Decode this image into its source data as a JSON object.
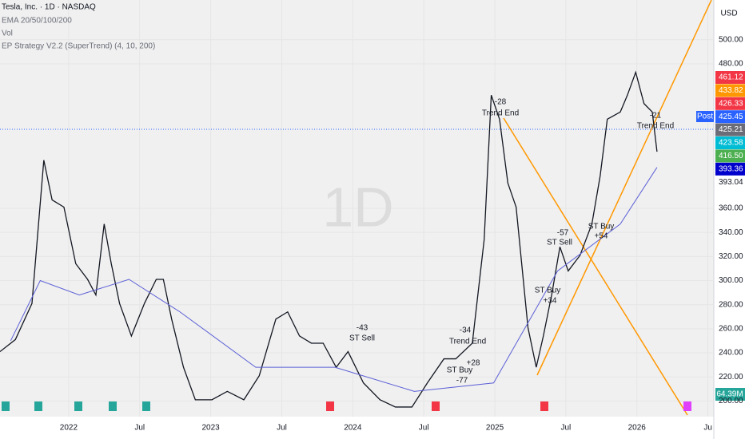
{
  "header": {
    "title": "Tesla, Inc. · 1D · NASDAQ",
    "indicators": [
      "EMA 20/50/100/200",
      "Vol",
      "EP Strategy V2.2 (SuperTrend) (4, 10, 200)"
    ],
    "watermark": "1D",
    "currency": "USD",
    "post": "Post",
    "volume_label": "64.39M"
  },
  "price_labels": [
    {
      "text": "461.12",
      "color": "#f23645"
    },
    {
      "text": "433.82",
      "color": "#ff9800"
    },
    {
      "text": "426.33",
      "color": "#f23645"
    },
    {
      "text": "425.45",
      "color": "#2962ff"
    },
    {
      "text": "425.21",
      "color": "#6a6d78"
    },
    {
      "text": "423.58",
      "color": "#00bcd4"
    },
    {
      "text": "416.50",
      "color": "#4caf50"
    },
    {
      "text": "393.36",
      "color": "#0000cc"
    },
    {
      "text": "393.04",
      "color": "none"
    }
  ],
  "annotations": [
    "-28",
    "Trend End",
    "-43",
    "ST Sell",
    "-34",
    "Trend End",
    "ST Buy",
    "+28",
    "-77",
    "-57",
    "ST Sell",
    "ST Buy",
    "+34",
    "ST Buy",
    "+54",
    "-21",
    "Trend End"
  ],
  "chart_data": {
    "type": "line",
    "xlim": [
      -5.8,
      54.5
    ],
    "ylim": [
      187,
      533
    ],
    "xticks": [
      {
        "value": 0,
        "label": "2022"
      },
      {
        "value": 6,
        "label": "Jul"
      },
      {
        "value": 12,
        "label": "2023"
      },
      {
        "value": 18,
        "label": "Jul"
      },
      {
        "value": 24,
        "label": "2024"
      },
      {
        "value": 30,
        "label": "Jul"
      },
      {
        "value": 36,
        "label": "2025"
      },
      {
        "value": 42,
        "label": "Jul"
      },
      {
        "value": 48,
        "label": "2026"
      },
      {
        "value": 54,
        "label": "Ju"
      }
    ],
    "yticks": [
      {
        "value": 200,
        "label": "200.00"
      },
      {
        "value": 220,
        "label": "220.00"
      },
      {
        "value": 240,
        "label": "240.00"
      },
      {
        "value": 260,
        "label": "260.00"
      },
      {
        "value": 280,
        "label": "280.00"
      },
      {
        "value": 300,
        "label": "300.00"
      },
      {
        "value": 320,
        "label": "320.00"
      },
      {
        "value": 340,
        "label": "340.00"
      },
      {
        "value": 360,
        "label": "360.00"
      },
      {
        "value": 480,
        "label": "480.00"
      },
      {
        "value": 500,
        "label": "500.00"
      }
    ],
    "series": [
      {
        "color": "#131722",
        "x": [
          -5.8,
          -4.5,
          -3.1,
          -2.1,
          -1.4,
          -0.4,
          0.6,
          1.6,
          2.3,
          3.0,
          3.6,
          4.3,
          5.3,
          6.4,
          7.4,
          8.0,
          8.7,
          9.7,
          10.7,
          12.1,
          13.4,
          14.8,
          16.1,
          17.5,
          18.5,
          19.5,
          20.5,
          21.5,
          22.6,
          23.6,
          24.9,
          26.3,
          27.6,
          29.0,
          30.3,
          31.7,
          32.7,
          34.1,
          35.1,
          35.7,
          36.4,
          37.1,
          37.8,
          38.8,
          39.5,
          40.1,
          40.8,
          41.5,
          42.2,
          43.2,
          44.2,
          44.9,
          45.5,
          46.6,
          47.2,
          47.9,
          48.6,
          49.3,
          49.7
        ],
        "values": [
          241,
          251,
          281,
          400,
          367,
          361,
          314,
          301,
          288,
          347,
          314,
          281,
          254,
          281,
          301,
          301,
          268,
          228,
          201,
          201,
          208,
          201,
          221,
          268,
          274,
          254,
          248,
          248,
          228,
          241,
          215,
          201,
          195,
          195,
          215,
          235,
          235,
          248,
          334,
          454,
          434,
          381,
          361,
          261,
          228,
          254,
          288,
          328,
          308,
          321,
          347,
          387,
          434,
          440,
          454,
          473,
          447,
          440,
          407
        ]
      },
      {
        "color": "#5b5fd6",
        "x": [
          -4.9,
          -2.4,
          0.9,
          5.1,
          9.4,
          15.8,
          22.5,
          29.2,
          35.9,
          41.3,
          46.6,
          49.7
        ],
        "values": [
          250,
          300,
          288,
          301,
          274,
          228,
          228,
          208,
          215,
          308,
          347,
          394
        ]
      }
    ]
  }
}
